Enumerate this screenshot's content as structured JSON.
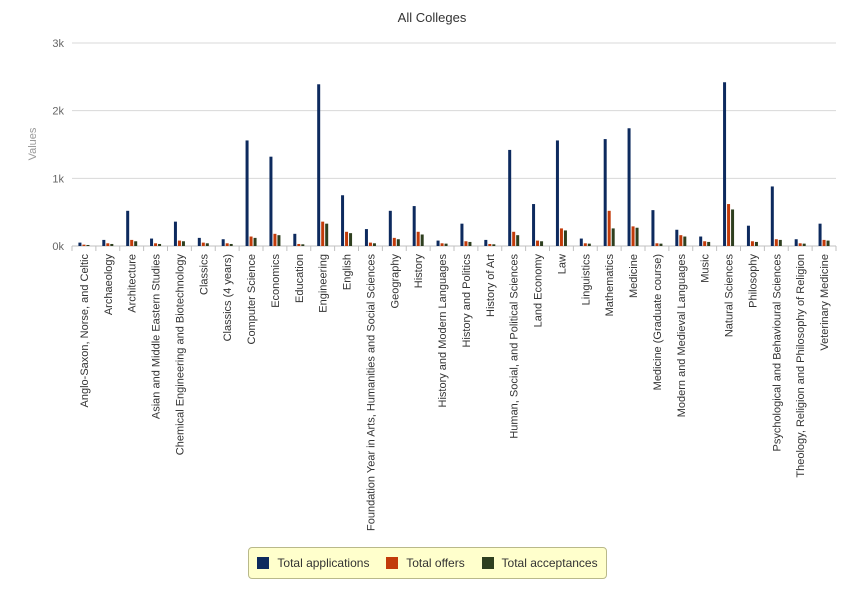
{
  "chart_data": {
    "type": "bar",
    "title": "All Colleges",
    "ylabel": "Values",
    "xlabel": "",
    "ylim": [
      0,
      3000
    ],
    "yticks": [
      0,
      1000,
      2000,
      3000
    ],
    "ytick_labels": [
      "0k",
      "1k",
      "2k",
      "3k"
    ],
    "grid": true,
    "legend_position": "bottom",
    "categories": [
      "Anglo-Saxon, Norse, and Celtic",
      "Archaeology",
      "Architecture",
      "Asian and Middle Eastern Studies",
      "Chemical Engineering and Biotechnology",
      "Classics",
      "Classics (4 years)",
      "Computer Science",
      "Economics",
      "Education",
      "Engineering",
      "English",
      "Foundation Year in Arts, Humanities and Social Sciences",
      "Geography",
      "History",
      "History and Modern Languages",
      "History and Politics",
      "History of Art",
      "Human, Social, and Political Sciences",
      "Land Economy",
      "Law",
      "Linguistics",
      "Mathematics",
      "Medicine",
      "Medicine (Graduate course)",
      "Modern and Medieval Languages",
      "Music",
      "Natural Sciences",
      "Philosophy",
      "Psychological and Behavioural Sciences",
      "Theology, Religion and Philosophy of Religion",
      "Veterinary Medicine"
    ],
    "series": [
      {
        "name": "Total applications",
        "color": "#0d2a5e",
        "values": [
          50,
          90,
          520,
          110,
          360,
          120,
          100,
          1560,
          1320,
          180,
          2390,
          750,
          250,
          520,
          590,
          80,
          330,
          90,
          1420,
          620,
          1560,
          110,
          1580,
          1740,
          530,
          240,
          140,
          2420,
          300,
          880,
          100,
          330
        ]
      },
      {
        "name": "Total offers",
        "color": "#c23b0a",
        "values": [
          20,
          40,
          90,
          40,
          80,
          50,
          40,
          140,
          180,
          30,
          360,
          210,
          50,
          120,
          210,
          40,
          70,
          30,
          210,
          80,
          260,
          40,
          520,
          290,
          40,
          160,
          70,
          620,
          70,
          100,
          40,
          90
        ]
      },
      {
        "name": "Total acceptances",
        "color": "#2e3f1f",
        "values": [
          15,
          30,
          70,
          30,
          70,
          40,
          30,
          120,
          160,
          25,
          330,
          190,
          40,
          100,
          170,
          35,
          60,
          25,
          160,
          70,
          230,
          35,
          260,
          270,
          35,
          140,
          60,
          540,
          60,
          90,
          35,
          80
        ]
      }
    ]
  }
}
